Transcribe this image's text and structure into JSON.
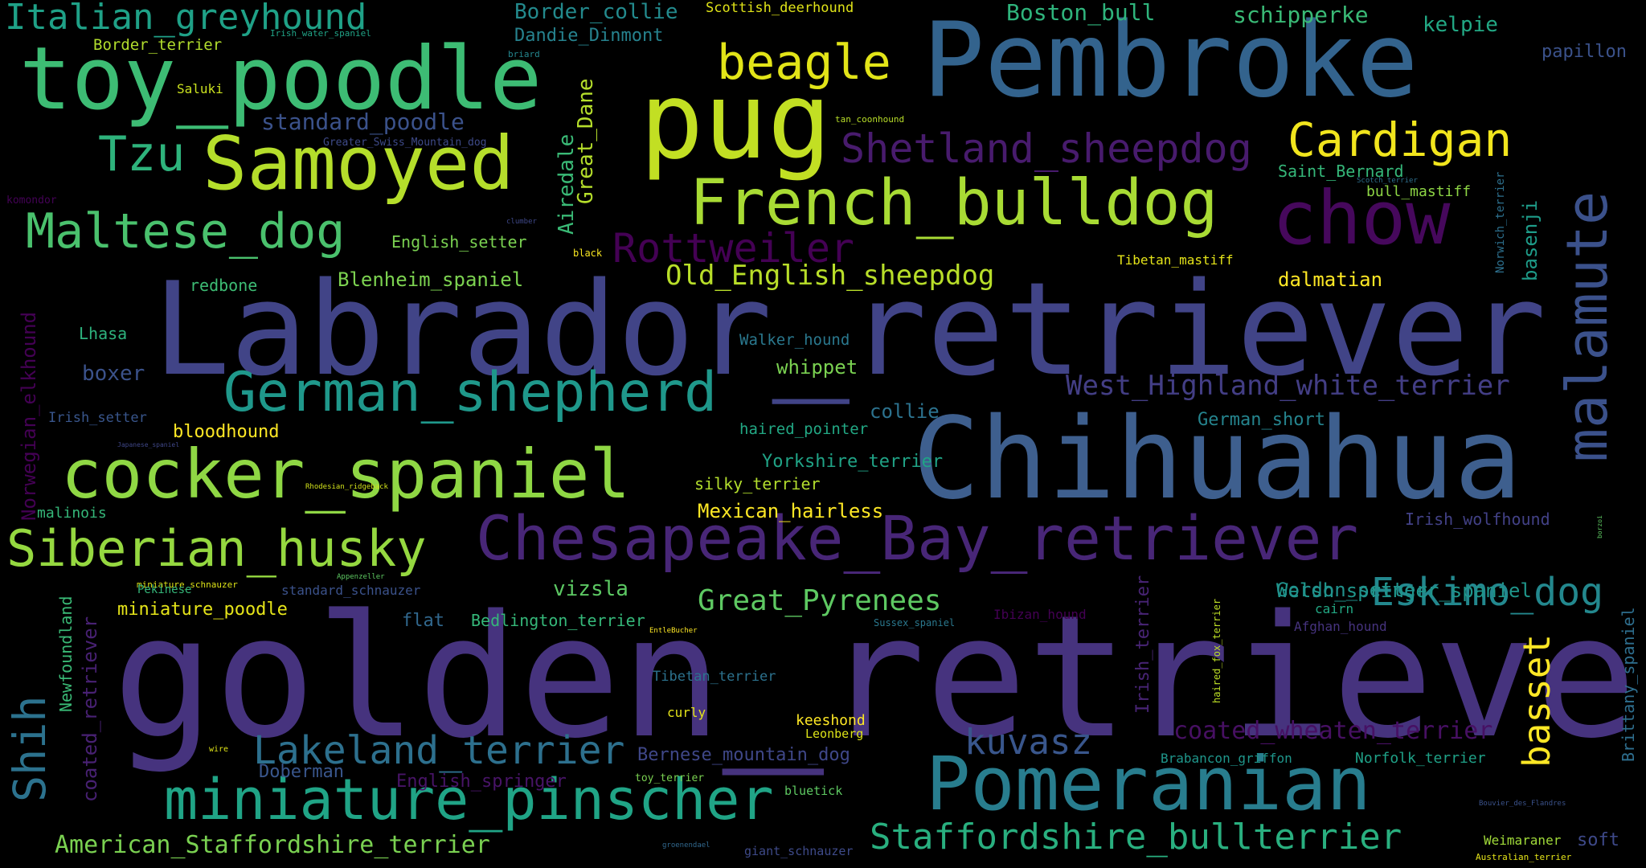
{
  "words": [
    {
      "text": "golden_retriever",
      "color": "#46337e"
    },
    {
      "text": "Labrador_retriever",
      "color": "#414487"
    },
    {
      "text": "Chihuahua",
      "color": "#3e5f8e"
    },
    {
      "text": "Pembroke",
      "color": "#33638d"
    },
    {
      "text": "pug",
      "color": "#c2df23"
    },
    {
      "text": "toy_poodle",
      "color": "#3dbc74"
    },
    {
      "text": "Samoyed",
      "color": "#b5de2b"
    },
    {
      "text": "chow",
      "color": "#46085c"
    },
    {
      "text": "malamute",
      "color": "#3b518b"
    },
    {
      "text": "French_bulldog",
      "color": "#a8db34"
    },
    {
      "text": "Chesapeake_Bay_retriever",
      "color": "#482677"
    },
    {
      "text": "Pomeranian",
      "color": "#287d8e"
    },
    {
      "text": "miniature_pinscher",
      "color": "#20a486"
    },
    {
      "text": "cocker_spaniel",
      "color": "#8fd744"
    },
    {
      "text": "German_shepherd",
      "color": "#1f988b"
    },
    {
      "text": "Siberian_husky",
      "color": "#95d840"
    },
    {
      "text": "Maltese_dog",
      "color": "#4ac16d"
    },
    {
      "text": "beagle",
      "color": "#e2e418"
    },
    {
      "text": "Cardigan",
      "color": "#f1e51d"
    },
    {
      "text": "Shetland_sheepdog",
      "color": "#481b6d"
    },
    {
      "text": "Rottweiler",
      "color": "#440154"
    },
    {
      "text": "Tzu",
      "color": "#2eb37c"
    },
    {
      "text": "Italian_greyhound",
      "color": "#1fa187"
    },
    {
      "text": "Lakeland_terrier",
      "color": "#2d708e"
    },
    {
      "text": "Staffordshire_bullterrier",
      "color": "#29af7f"
    },
    {
      "text": "Eskimo_dog",
      "color": "#23888e"
    },
    {
      "text": "Shih",
      "color": "#2c728e"
    },
    {
      "text": "basset",
      "color": "#fde725"
    },
    {
      "text": "kuvasz",
      "color": "#39568c"
    },
    {
      "text": "Old_English_sheepdog",
      "color": "#b8de29"
    },
    {
      "text": "West_Highland_white_terrier",
      "color": "#433e85"
    },
    {
      "text": "Great_Pyrenees",
      "color": "#5ec962"
    },
    {
      "text": "American_Staffordshire_terrier",
      "color": "#7ad151"
    },
    {
      "text": "standard_poodle",
      "color": "#3b528b"
    },
    {
      "text": "coated_wheaten_terrier",
      "color": "#471063"
    },
    {
      "text": "Norwegian_elkhound",
      "color": "#440154"
    },
    {
      "text": "coated_retriever",
      "color": "#482173"
    },
    {
      "text": "Border_collie",
      "color": "#238a8d"
    },
    {
      "text": "Dandie_Dinmont",
      "color": "#26828e"
    },
    {
      "text": "Boston_bull",
      "color": "#2fb47c"
    },
    {
      "text": "schipperke",
      "color": "#3aba76"
    },
    {
      "text": "kelpie",
      "color": "#22a884"
    },
    {
      "text": "papillon",
      "color": "#3b528b"
    },
    {
      "text": "Scottish_deerhound",
      "color": "#dfe318"
    },
    {
      "text": "Border_terrier",
      "color": "#b2dd2d"
    },
    {
      "text": "Irish_water_spaniel",
      "color": "#20a386"
    },
    {
      "text": "briard",
      "color": "#24868e"
    },
    {
      "text": "Saluki",
      "color": "#cae11f"
    },
    {
      "text": "Greater_Swiss_Mountain_dog",
      "color": "#3e4a89"
    },
    {
      "text": "tan_coonhound",
      "color": "#b8de29"
    },
    {
      "text": "Airedale",
      "color": "#3aba76"
    },
    {
      "text": "Great_Dane",
      "color": "#b5de2b"
    },
    {
      "text": "Saint_Bernard",
      "color": "#35b779"
    },
    {
      "text": "bull_mastiff",
      "color": "#8ed645"
    },
    {
      "text": "Scotch_terrier",
      "color": "#2e6f8e"
    },
    {
      "text": "komondor",
      "color": "#440256"
    },
    {
      "text": "clumber",
      "color": "#3f4889"
    },
    {
      "text": "black",
      "color": "#f8e621"
    },
    {
      "text": "English_setter",
      "color": "#7ad151"
    },
    {
      "text": "Tibetan_mastiff",
      "color": "#e5e419"
    },
    {
      "text": "Norwich_terrier",
      "color": "#2d708e"
    },
    {
      "text": "basenji",
      "color": "#1e9c89"
    },
    {
      "text": "dalmatian",
      "color": "#fde725"
    },
    {
      "text": "redbone",
      "color": "#3dbc74"
    },
    {
      "text": "Blenheim_spaniel",
      "color": "#7cd250"
    },
    {
      "text": "Lhasa",
      "color": "#2db27d"
    },
    {
      "text": "Walker_hound",
      "color": "#2a788e"
    },
    {
      "text": "boxer",
      "color": "#3b528b"
    },
    {
      "text": "whippet",
      "color": "#7ad151"
    },
    {
      "text": "Irish_setter",
      "color": "#39568c"
    },
    {
      "text": "collie",
      "color": "#2c728e"
    },
    {
      "text": "bloodhound",
      "color": "#fde725"
    },
    {
      "text": "German_short",
      "color": "#25848e"
    },
    {
      "text": "haired_pointer",
      "color": "#22a884"
    },
    {
      "text": "Japanese_spaniel",
      "color": "#3f4788"
    },
    {
      "text": "Yorkshire_terrier",
      "color": "#20a386"
    },
    {
      "text": "borzoi",
      "color": "#5ec962"
    },
    {
      "text": "Rhodesian_ridgeback",
      "color": "#d2e21b"
    },
    {
      "text": "silky_terrier",
      "color": "#b2dd2d"
    },
    {
      "text": "Irish_wolfhound",
      "color": "#424186"
    },
    {
      "text": "malinois",
      "color": "#35b779"
    },
    {
      "text": "miniature_schnauzer",
      "color": "#dde318"
    },
    {
      "text": "Mexican_hairless",
      "color": "#fde725"
    },
    {
      "text": "Welsh_springer_spaniel",
      "color": "#1f968b"
    },
    {
      "text": "Appenzeller",
      "color": "#5ec962"
    },
    {
      "text": "standard_schnauzer",
      "color": "#3b528b"
    },
    {
      "text": "Gordon_setter",
      "color": "#21918c"
    },
    {
      "text": "Pekinese",
      "color": "#35b779"
    },
    {
      "text": "vizsla",
      "color": "#5cc863"
    },
    {
      "text": "cairn",
      "color": "#22a884"
    },
    {
      "text": "miniature_poodle",
      "color": "#e5e419"
    },
    {
      "text": "flat",
      "color": "#31688e"
    },
    {
      "text": "Bedlington_terrier",
      "color": "#35b779"
    },
    {
      "text": "EntleBucher",
      "color": "#fde725"
    },
    {
      "text": "Sussex_spaniel",
      "color": "#2a788e"
    },
    {
      "text": "Ibizan_hound",
      "color": "#440154"
    },
    {
      "text": "Afghan_hound",
      "color": "#46337e"
    },
    {
      "text": "haired_fox_terrier",
      "color": "#bddf26"
    },
    {
      "text": "Irish_terrier",
      "color": "#482475"
    },
    {
      "text": "Brittany_spaniel",
      "color": "#2e6e8e"
    },
    {
      "text": "Newfoundland",
      "color": "#3aba76"
    },
    {
      "text": "Tibetan_terrier",
      "color": "#2c728e"
    },
    {
      "text": "curly",
      "color": "#e5e419"
    },
    {
      "text": "keeshond",
      "color": "#fde725"
    },
    {
      "text": "Leonberg",
      "color": "#dde318"
    },
    {
      "text": "Bernese_mountain_dog",
      "color": "#3f4788"
    },
    {
      "text": "Brabancon_griffon",
      "color": "#1f968b"
    },
    {
      "text": "Norfolk_terrier",
      "color": "#1fa187"
    },
    {
      "text": "wire",
      "color": "#dfe318"
    },
    {
      "text": "Doberman",
      "color": "#39568c"
    },
    {
      "text": "English_springer",
      "color": "#481467"
    },
    {
      "text": "toy_terrier",
      "color": "#7ad151"
    },
    {
      "text": "bluetick",
      "color": "#5ec962"
    },
    {
      "text": "Bouvier_des_Flandres",
      "color": "#3b528b"
    },
    {
      "text": "Weimaraner",
      "color": "#a0da39"
    },
    {
      "text": "soft",
      "color": "#3e4989"
    },
    {
      "text": "groenendael",
      "color": "#31688e"
    },
    {
      "text": "giant_schnauzer",
      "color": "#3e4a89"
    },
    {
      "text": "Australian_terrier",
      "color": "#e5e419"
    }
  ]
}
